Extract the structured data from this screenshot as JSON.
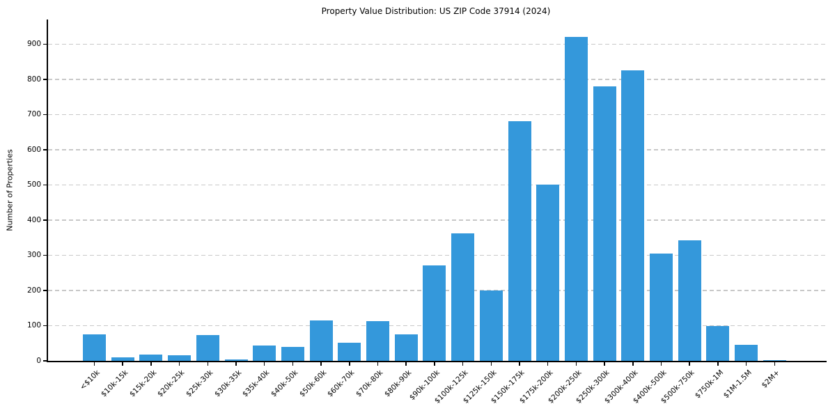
{
  "title": "Property Value Distribution: US ZIP Code 37914 (2024)",
  "chart_data": {
    "type": "bar",
    "title": "Property Value Distribution: US ZIP Code 37914 (2024)",
    "xlabel": "",
    "ylabel": "Number of Properties",
    "categories": [
      "<$10k",
      "$10k-15k",
      "$15k-20k",
      "$20k-25k",
      "$25k-30k",
      "$30k-35k",
      "$35k-40k",
      "$40k-50k",
      "$50k-60k",
      "$60k-70k",
      "$70k-80k",
      "$80k-90k",
      "$90k-100k",
      "$100k-125k",
      "$125k-150k",
      "$150k-175k",
      "$175k-200k",
      "$200k-250k",
      "$250k-300k",
      "$300k-400k",
      "$400k-500k",
      "$500k-750k",
      "$750k-1M",
      "$1M-1.5M",
      "$2M+"
    ],
    "values": [
      75,
      10,
      18,
      15,
      73,
      4,
      43,
      40,
      115,
      52,
      113,
      75,
      272,
      362,
      199,
      682,
      500,
      920,
      780,
      825,
      305,
      342,
      100,
      46,
      3
    ],
    "yticks": [
      0,
      100,
      200,
      300,
      400,
      500,
      600,
      700,
      800,
      900
    ],
    "ylim": [
      0,
      970
    ],
    "grid": "horizontal-dashed",
    "legend": "none",
    "colors": {
      "bar": "#3498db",
      "grid": "#c8c8c8",
      "axis": "#000000",
      "text": "#000000",
      "background": "#ffffff"
    }
  }
}
